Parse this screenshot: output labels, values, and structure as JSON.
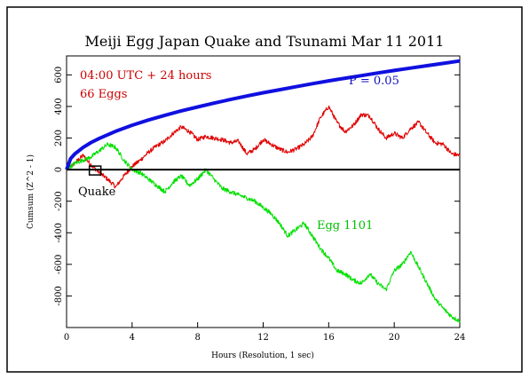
{
  "chart_data": {
    "type": "line",
    "title": "Meiji Egg Japan Quake and Tsunami Mar 11 2011",
    "xlabel": "Hours (Resolution, 1 sec)",
    "ylabel": "Cumsum (Z^2 - 1)",
    "xlim": [
      0,
      24
    ],
    "ylim": [
      -1000,
      720
    ],
    "x_ticks": [
      0,
      4,
      8,
      12,
      16,
      20,
      24
    ],
    "y_ticks": [
      -800,
      -600,
      -400,
      -200,
      0,
      200,
      400,
      600
    ],
    "annotations": {
      "time_window": "04:00 UTC + 24 hours",
      "egg_count": "66 Eggs",
      "event_label": "Quake",
      "event_time_hours": 1.77,
      "probability_label": "P = 0.05"
    },
    "series": [
      {
        "name": "Eggs",
        "color": "#e00000",
        "x": [
          0,
          0.5,
          1,
          1.5,
          2,
          2.5,
          3,
          3.5,
          4,
          4.5,
          5,
          5.5,
          6,
          6.5,
          7,
          7.5,
          8,
          8.5,
          9,
          9.5,
          10,
          10.5,
          11,
          11.5,
          12,
          12.5,
          13,
          13.5,
          14,
          14.5,
          15,
          15.5,
          16,
          16.5,
          17,
          17.5,
          18,
          18.5,
          19,
          19.5,
          20,
          20.5,
          21,
          21.5,
          22,
          22.5,
          23,
          23.5,
          24
        ],
        "values": [
          0,
          40,
          90,
          30,
          -20,
          -60,
          -110,
          -40,
          20,
          60,
          110,
          150,
          180,
          230,
          270,
          240,
          190,
          210,
          200,
          190,
          170,
          180,
          100,
          130,
          190,
          160,
          130,
          110,
          130,
          160,
          210,
          330,
          400,
          300,
          240,
          280,
          350,
          340,
          260,
          200,
          230,
          200,
          260,
          300,
          230,
          170,
          160,
          100,
          90
        ]
      },
      {
        "name": "Egg 1101",
        "color": "#00e000",
        "x": [
          0,
          0.5,
          1,
          1.5,
          2,
          2.5,
          3,
          3.5,
          4,
          4.5,
          5,
          5.5,
          6,
          6.5,
          7,
          7.5,
          8,
          8.5,
          9,
          9.5,
          10,
          10.5,
          11,
          11.5,
          12,
          12.5,
          13,
          13.5,
          14,
          14.5,
          15,
          15.5,
          16,
          16.5,
          17,
          17.5,
          18,
          18.5,
          19,
          19.5,
          20,
          20.5,
          21,
          21.5,
          22,
          22.5,
          23,
          23.5,
          24
        ],
        "values": [
          0,
          40,
          60,
          80,
          120,
          160,
          140,
          60,
          0,
          -20,
          -60,
          -100,
          -140,
          -80,
          -40,
          -100,
          -60,
          0,
          -60,
          -120,
          -140,
          -160,
          -180,
          -200,
          -240,
          -280,
          -340,
          -420,
          -380,
          -340,
          -420,
          -500,
          -560,
          -640,
          -660,
          -700,
          -720,
          -660,
          -720,
          -760,
          -640,
          -600,
          -520,
          -620,
          -720,
          -820,
          -880,
          -930,
          -960
        ]
      },
      {
        "name": "P = 0.05",
        "color": "#1010e0",
        "x": [
          0,
          0.25,
          0.5,
          1,
          1.5,
          2,
          3,
          4,
          5,
          6,
          7,
          8,
          9,
          10,
          11,
          12,
          13,
          14,
          15,
          16,
          17,
          18,
          19,
          20,
          21,
          22,
          23,
          24
        ],
        "values": [
          0,
          70,
          99,
          140,
          172,
          198,
          243,
          281,
          314,
          344,
          372,
          397,
          421,
          444,
          466,
          487,
          506,
          525,
          544,
          562,
          579,
          595,
          612,
          628,
          643,
          658,
          673,
          688
        ]
      }
    ]
  }
}
